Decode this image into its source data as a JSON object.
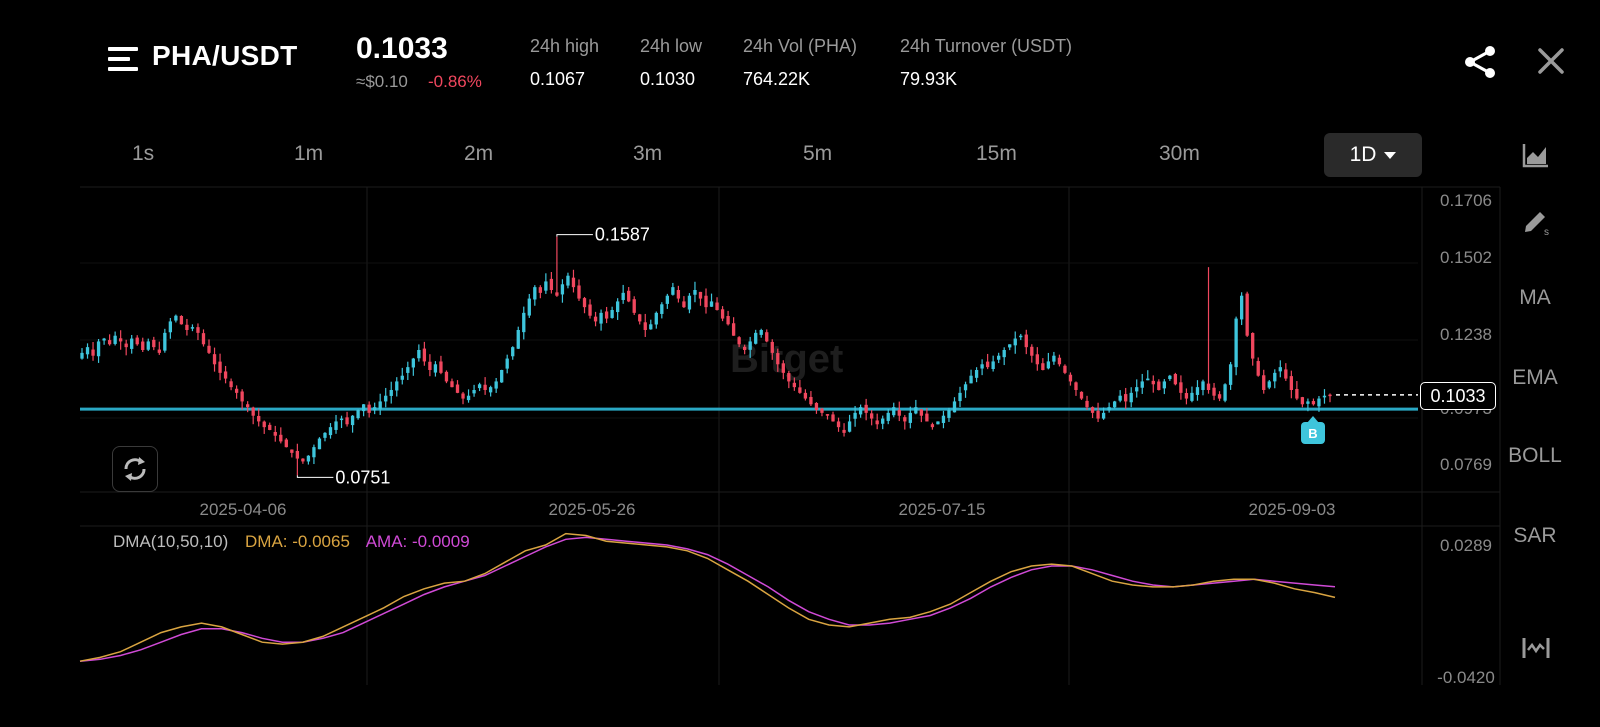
{
  "header": {
    "pair": "PHA/USDT",
    "price": "0.1033",
    "price_usd": "≈$0.10",
    "change": "-0.86%",
    "stats": [
      {
        "label": "24h high",
        "value": "0.1067"
      },
      {
        "label": "24h low",
        "value": "0.1030"
      },
      {
        "label": "24h Vol (PHA)",
        "value": "764.22K"
      },
      {
        "label": "24h Turnover (USDT)",
        "value": "79.93K"
      }
    ],
    "share_icon": "share-icon",
    "close_icon": "close-icon"
  },
  "timeframes": [
    "1s",
    "1m",
    "2m",
    "3m",
    "5m",
    "15m",
    "30m"
  ],
  "active_timeframe": "1D",
  "side_tools": {
    "chart_type_icon": "area-chart-icon",
    "draw_icon": "pen-icon",
    "items": [
      "MA",
      "EMA",
      "BOLL",
      "SAR"
    ],
    "fullscreen_icon": "expand-icon"
  },
  "colors": {
    "up": "#3ec5dc",
    "down": "#f0475e",
    "dma": "#d9a441",
    "ama": "#d04ad6",
    "hline": "#2aa8c4"
  },
  "watermark": "Bitget",
  "main_chart": {
    "y_ticks": [
      "0.1706",
      "0.1502",
      "0.1238",
      "0.0973",
      "0.0769"
    ],
    "x_ticks": [
      "2025-04-06",
      "2025-05-26",
      "2025-07-15",
      "2025-09-03"
    ],
    "high_label": "0.1587",
    "low_label": "0.0751",
    "last_price": "0.1033",
    "h_line": 0.0983,
    "signal_marker": "B"
  },
  "indicator": {
    "name": "DMA(10,50,10)",
    "dma": "DMA: -0.0065",
    "ama": "AMA: -0.0009",
    "y_ticks": [
      "0.0289",
      "-0.0420"
    ]
  },
  "chart_data": {
    "type": "candlestick",
    "closes": [
      0.118,
      0.12,
      0.117,
      0.122,
      0.123,
      0.121,
      0.124,
      0.122,
      0.12,
      0.123,
      0.121,
      0.119,
      0.122,
      0.12,
      0.118,
      0.125,
      0.129,
      0.131,
      0.128,
      0.126,
      0.127,
      0.125,
      0.121,
      0.118,
      0.114,
      0.111,
      0.109,
      0.106,
      0.104,
      0.101,
      0.099,
      0.096,
      0.094,
      0.092,
      0.091,
      0.089,
      0.087,
      0.085,
      0.083,
      0.081,
      0.08,
      0.082,
      0.085,
      0.088,
      0.09,
      0.092,
      0.094,
      0.095,
      0.093,
      0.096,
      0.098,
      0.1,
      0.097,
      0.099,
      0.101,
      0.103,
      0.105,
      0.108,
      0.11,
      0.113,
      0.116,
      0.119,
      0.115,
      0.112,
      0.114,
      0.111,
      0.108,
      0.106,
      0.104,
      0.102,
      0.103,
      0.105,
      0.107,
      0.105,
      0.106,
      0.108,
      0.112,
      0.116,
      0.12,
      0.126,
      0.132,
      0.137,
      0.141,
      0.139,
      0.143,
      0.14,
      0.138,
      0.142,
      0.145,
      0.141,
      0.137,
      0.134,
      0.131,
      0.129,
      0.132,
      0.13,
      0.133,
      0.136,
      0.139,
      0.136,
      0.132,
      0.129,
      0.126,
      0.128,
      0.132,
      0.135,
      0.138,
      0.141,
      0.137,
      0.134,
      0.138,
      0.14,
      0.137,
      0.134,
      0.136,
      0.133,
      0.13,
      0.128,
      0.124,
      0.121,
      0.119,
      0.122,
      0.125,
      0.126,
      0.122,
      0.118,
      0.114,
      0.111,
      0.108,
      0.106,
      0.104,
      0.102,
      0.1,
      0.098,
      0.097,
      0.096,
      0.094,
      0.092,
      0.09,
      0.094,
      0.097,
      0.099,
      0.097,
      0.095,
      0.093,
      0.095,
      0.097,
      0.099,
      0.096,
      0.094,
      0.097,
      0.099,
      0.096,
      0.094,
      0.092,
      0.094,
      0.096,
      0.098,
      0.101,
      0.104,
      0.107,
      0.11,
      0.112,
      0.114,
      0.113,
      0.115,
      0.117,
      0.119,
      0.121,
      0.123,
      0.124,
      0.12,
      0.117,
      0.114,
      0.112,
      0.115,
      0.117,
      0.114,
      0.111,
      0.108,
      0.105,
      0.102,
      0.099,
      0.097,
      0.095,
      0.097,
      0.099,
      0.101,
      0.103,
      0.101,
      0.104,
      0.106,
      0.108,
      0.109,
      0.107,
      0.105,
      0.108,
      0.11,
      0.107,
      0.104,
      0.102,
      0.104,
      0.106,
      0.108,
      0.105,
      0.103,
      0.102,
      0.107,
      0.114,
      0.13,
      0.138,
      0.124,
      0.116,
      0.11,
      0.105,
      0.108,
      0.111,
      0.113,
      0.109,
      0.105,
      0.102,
      0.1,
      0.101,
      0.1,
      0.102,
      0.103,
      0.1033
    ],
    "dma_line": [
      -0.04,
      -0.038,
      -0.035,
      -0.03,
      -0.025,
      -0.022,
      -0.02,
      -0.022,
      -0.026,
      -0.03,
      -0.031,
      -0.03,
      -0.027,
      -0.022,
      -0.017,
      -0.012,
      -0.006,
      -0.002,
      0.001,
      0.002,
      0.006,
      0.012,
      0.018,
      0.021,
      0.027,
      0.026,
      0.023,
      0.022,
      0.021,
      0.02,
      0.018,
      0.014,
      0.008,
      0.002,
      -0.005,
      -0.012,
      -0.018,
      -0.021,
      -0.022,
      -0.02,
      -0.018,
      -0.017,
      -0.014,
      -0.01,
      -0.004,
      0.002,
      0.007,
      0.01,
      0.011,
      0.01,
      0.006,
      0.002,
      0.0,
      -0.001,
      -0.001,
      0.0,
      0.002,
      0.003,
      0.003,
      0.001,
      -0.002,
      -0.004,
      -0.0065
    ],
    "ama_line": [
      -0.04,
      -0.039,
      -0.037,
      -0.034,
      -0.03,
      -0.026,
      -0.023,
      -0.023,
      -0.025,
      -0.028,
      -0.03,
      -0.03,
      -0.028,
      -0.025,
      -0.02,
      -0.015,
      -0.01,
      -0.005,
      -0.001,
      0.002,
      0.005,
      0.01,
      0.015,
      0.02,
      0.024,
      0.025,
      0.024,
      0.023,
      0.022,
      0.021,
      0.019,
      0.016,
      0.011,
      0.005,
      -0.001,
      -0.008,
      -0.014,
      -0.018,
      -0.021,
      -0.021,
      -0.02,
      -0.018,
      -0.016,
      -0.012,
      -0.007,
      -0.001,
      0.004,
      0.008,
      0.01,
      0.01,
      0.008,
      0.005,
      0.002,
      0.0,
      -0.001,
      0.0,
      0.001,
      0.002,
      0.003,
      0.002,
      0.001,
      0.0,
      -0.0009
    ],
    "ylim_main": [
      0.07,
      0.175
    ],
    "ylim_indicator": [
      -0.042,
      0.0289
    ]
  }
}
